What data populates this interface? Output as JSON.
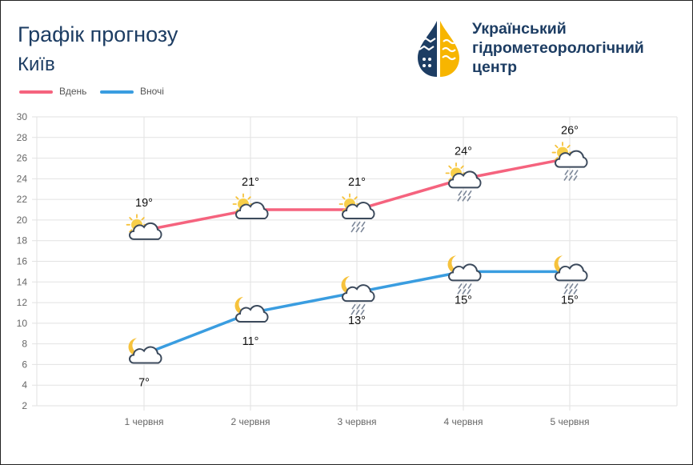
{
  "header": {
    "title": "Графік прогнозу",
    "city": "Київ"
  },
  "logo": {
    "icon": "ukrhydromet-drop-logo-icon",
    "line1": "Український",
    "line2": "гідрометеорологічний",
    "line3": "центр"
  },
  "colors": {
    "day": "#f5637e",
    "night": "#3a9de0",
    "title": "#1d3d63",
    "grid": "#e2e2e2"
  },
  "chart_data": {
    "type": "line",
    "categories": [
      "1 червня",
      "2 червня",
      "3 червня",
      "4 червня",
      "5 червня"
    ],
    "ylim": [
      2,
      30
    ],
    "yticks": [
      2,
      4,
      6,
      8,
      10,
      12,
      14,
      16,
      18,
      20,
      22,
      24,
      26,
      28,
      30
    ],
    "grid": true,
    "legend_position": "top-left",
    "series": [
      {
        "name": "Вдень",
        "color": "#f5637e",
        "values": [
          19,
          21,
          21,
          24,
          26
        ],
        "labels": [
          "19°",
          "21°",
          "21°",
          "24°",
          "26°"
        ],
        "icons": [
          "sun-cloud-icon",
          "sun-cloud-icon",
          "sun-cloud-rain-icon",
          "sun-cloud-rain-icon",
          "sun-cloud-rain-icon"
        ]
      },
      {
        "name": "Вночі",
        "color": "#3a9de0",
        "values": [
          7,
          11,
          13,
          15,
          15
        ],
        "labels": [
          "7°",
          "11°",
          "13°",
          "15°",
          "15°"
        ],
        "icons": [
          "moon-cloud-icon",
          "moon-cloud-icon",
          "moon-cloud-rain-icon",
          "moon-cloud-rain-icon",
          "moon-cloud-rain-icon"
        ]
      }
    ]
  }
}
